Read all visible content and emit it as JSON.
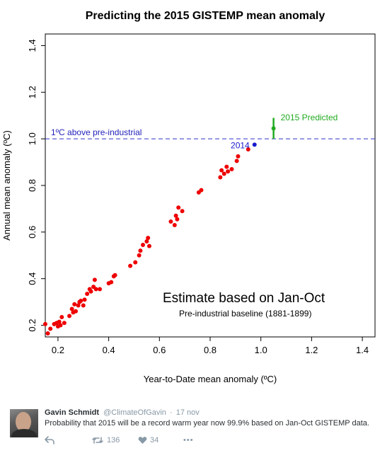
{
  "chart_data": {
    "type": "scatter",
    "title": "Predicting the 2015 GISTEMP mean anomaly",
    "xlabel": "Year-to-Date mean anomaly (ºC)",
    "ylabel": "Annual mean anomaly (ºC)",
    "xlim": [
      0.15,
      1.45
    ],
    "ylim": [
      0.15,
      1.45
    ],
    "xticks": [
      "0.2",
      "0.4",
      "0.6",
      "0.8",
      "1.0",
      "1.2",
      "1.4"
    ],
    "yticks": [
      "0.2",
      "0.4",
      "0.6",
      "0.8",
      "1.0",
      "1.2",
      "1.4"
    ],
    "grid": false,
    "annotations": {
      "main": "Estimate based on Jan-Oct",
      "sub": "Pre-industrial baseline (1881-1899)",
      "line_label": "1ºC above pre-industrial",
      "point_label_2014": "2014",
      "predicted_label": "2015 Predicted"
    },
    "reference_line": {
      "y": 1.0,
      "color": "#3333cc",
      "style": "dashed"
    },
    "series": [
      {
        "color": "#ee0000",
        "points": [
          [
            0.15,
            0.205
          ],
          [
            0.16,
            0.165
          ],
          [
            0.17,
            0.185
          ],
          [
            0.185,
            0.205
          ],
          [
            0.195,
            0.21
          ],
          [
            0.2,
            0.195
          ],
          [
            0.205,
            0.215
          ],
          [
            0.21,
            0.2
          ],
          [
            0.215,
            0.235
          ],
          [
            0.225,
            0.21
          ],
          [
            0.245,
            0.24
          ],
          [
            0.255,
            0.27
          ],
          [
            0.26,
            0.255
          ],
          [
            0.265,
            0.29
          ],
          [
            0.27,
            0.26
          ],
          [
            0.28,
            0.285
          ],
          [
            0.285,
            0.3
          ],
          [
            0.29,
            0.305
          ],
          [
            0.3,
            0.285
          ],
          [
            0.305,
            0.31
          ],
          [
            0.315,
            0.335
          ],
          [
            0.325,
            0.355
          ],
          [
            0.33,
            0.345
          ],
          [
            0.34,
            0.365
          ],
          [
            0.345,
            0.395
          ],
          [
            0.35,
            0.355
          ],
          [
            0.365,
            0.355
          ],
          [
            0.4,
            0.38
          ],
          [
            0.41,
            0.385
          ],
          [
            0.42,
            0.41
          ],
          [
            0.425,
            0.415
          ],
          [
            0.485,
            0.455
          ],
          [
            0.505,
            0.47
          ],
          [
            0.52,
            0.5
          ],
          [
            0.525,
            0.52
          ],
          [
            0.535,
            0.545
          ],
          [
            0.55,
            0.56
          ],
          [
            0.555,
            0.575
          ],
          [
            0.56,
            0.54
          ],
          [
            0.645,
            0.645
          ],
          [
            0.66,
            0.63
          ],
          [
            0.665,
            0.67
          ],
          [
            0.67,
            0.655
          ],
          [
            0.675,
            0.705
          ],
          [
            0.69,
            0.69
          ],
          [
            0.755,
            0.77
          ],
          [
            0.765,
            0.78
          ],
          [
            0.84,
            0.835
          ],
          [
            0.845,
            0.865
          ],
          [
            0.855,
            0.85
          ],
          [
            0.865,
            0.88
          ],
          [
            0.87,
            0.86
          ],
          [
            0.885,
            0.87
          ],
          [
            0.905,
            0.905
          ],
          [
            0.91,
            0.925
          ],
          [
            0.95,
            0.955
          ]
        ]
      },
      {
        "color": "#1a1acc",
        "points": [
          [
            0.975,
            0.975
          ]
        ]
      },
      {
        "color": "#22aa22",
        "points": [
          [
            1.05,
            1.045
          ]
        ],
        "error_bar": [
          1.0,
          1.09
        ]
      }
    ]
  },
  "tweet": {
    "author_name": "Gavin Schmidt",
    "handle": "@ClimateOfGavin",
    "separator": "·",
    "date": "17 nov",
    "text": "Probability that 2015 will be a record warm year now 99.9% based on Jan-Oct GISTEMP data.",
    "retweet_count": "136",
    "like_count": "34",
    "icons": [
      "reply-icon",
      "retweet-icon",
      "like-icon",
      "more-icon"
    ],
    "more_label": "•••"
  }
}
